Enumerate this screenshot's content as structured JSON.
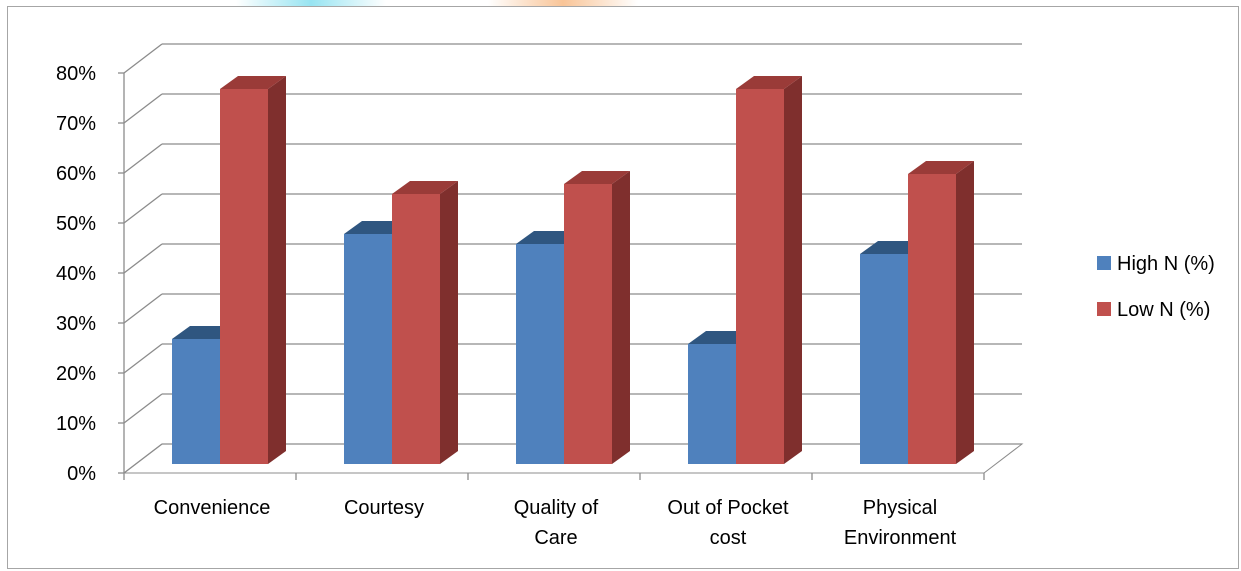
{
  "chart_data": {
    "type": "bar",
    "title": "",
    "xlabel": "",
    "ylabel": "",
    "ylim": [
      0,
      0.8
    ],
    "y_ticks": [
      "0%",
      "10%",
      "20%",
      "30%",
      "40%",
      "50%",
      "60%",
      "70%",
      "80%"
    ],
    "categories": [
      [
        "Convenience"
      ],
      [
        "Courtesy"
      ],
      [
        "Quality of",
        "Care"
      ],
      [
        "Out of Pocket",
        "cost"
      ],
      [
        "Physical",
        "Environment"
      ]
    ],
    "series": [
      {
        "name": "High N (%)",
        "color": "#4f81bd",
        "side_color": "#3a6594",
        "top_color": "#2f5680",
        "values": [
          0.25,
          0.46,
          0.44,
          0.24,
          0.42
        ]
      },
      {
        "name": "Low N (%)",
        "color": "#c0504d",
        "side_color": "#7f2f2d",
        "top_color": "#9a3b38",
        "values": [
          0.75,
          0.54,
          0.56,
          0.75,
          0.58
        ]
      }
    ],
    "grid": true,
    "style": "3d-clustered-column",
    "legend_position": "right"
  }
}
